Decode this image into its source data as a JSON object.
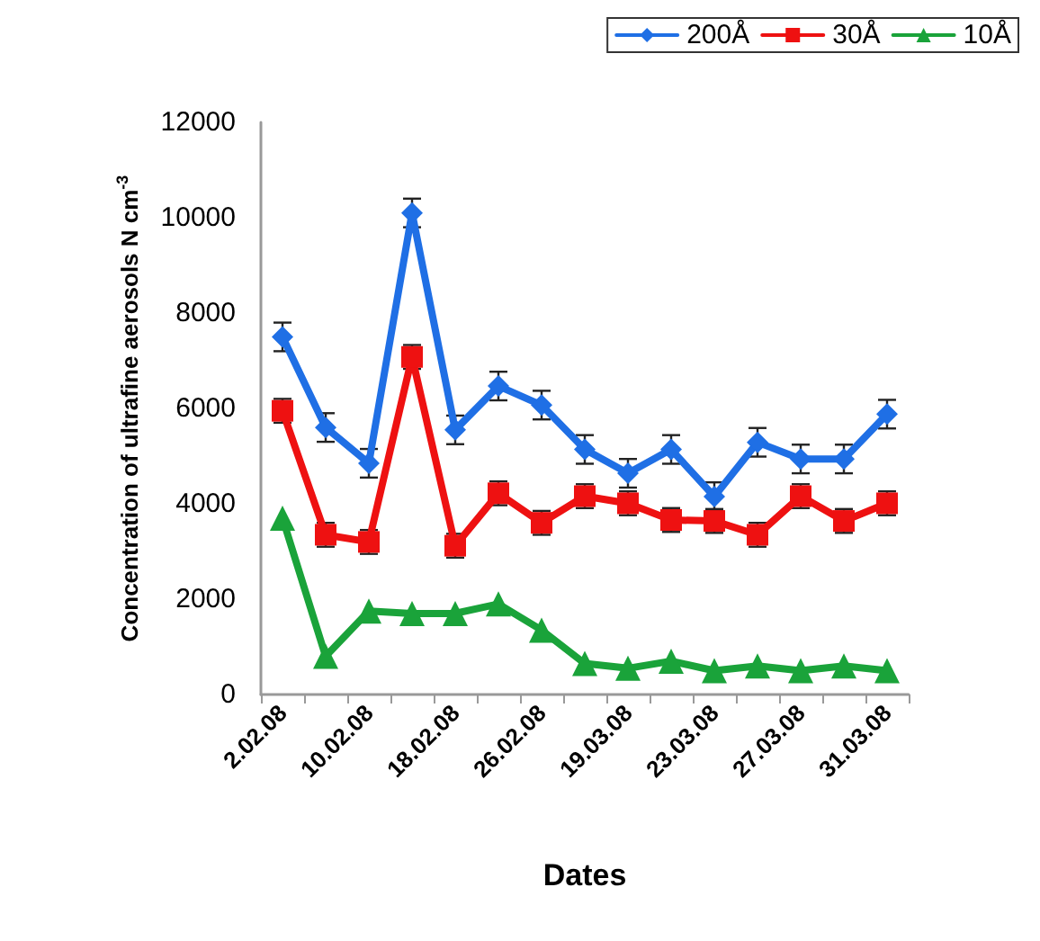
{
  "chart_data": {
    "type": "line",
    "xlabel": "Dates",
    "ylabel": "Concentration of ultrafine aerosols N cm$^{-3}$",
    "categories": [
      "2.02.08",
      null,
      "10.02.08",
      null,
      "18.02.08",
      null,
      "26.02.08",
      null,
      "19.03.08",
      null,
      "23.03.08",
      null,
      "27.03.08",
      null,
      "31.03.08"
    ],
    "ylim": [
      0,
      12000
    ],
    "yticks": [
      0,
      2000,
      4000,
      6000,
      8000,
      10000,
      12000
    ],
    "grid": false,
    "legend": "top right",
    "line_style": "solid",
    "series": [
      {
        "name": "200Å",
        "color": "#1f6fe5",
        "marker": "diamond",
        "values": [
          7500,
          5600,
          4850,
          10100,
          5550,
          6470,
          6070,
          5140,
          4640,
          5140,
          4150,
          5290,
          4940,
          4940,
          5880
        ],
        "errors": [
          300,
          300,
          300,
          300,
          300,
          300,
          300,
          300,
          300,
          300,
          300,
          300,
          300,
          300,
          300
        ]
      },
      {
        "name": "30Å",
        "color": "#ee1111",
        "marker": "square",
        "values": [
          5950,
          3350,
          3200,
          7080,
          3120,
          4220,
          3600,
          4160,
          4010,
          3660,
          3640,
          3350,
          4160,
          3640,
          4010
        ],
        "errors": [
          250,
          250,
          250,
          250,
          250,
          250,
          250,
          250,
          250,
          250,
          250,
          250,
          250,
          250,
          250
        ]
      },
      {
        "name": "10Å",
        "color": "#1aa33a",
        "marker": "triangle",
        "values": [
          3700,
          800,
          1750,
          1700,
          1700,
          1900,
          1350,
          650,
          550,
          700,
          500,
          600,
          500,
          600,
          500
        ]
      }
    ]
  }
}
